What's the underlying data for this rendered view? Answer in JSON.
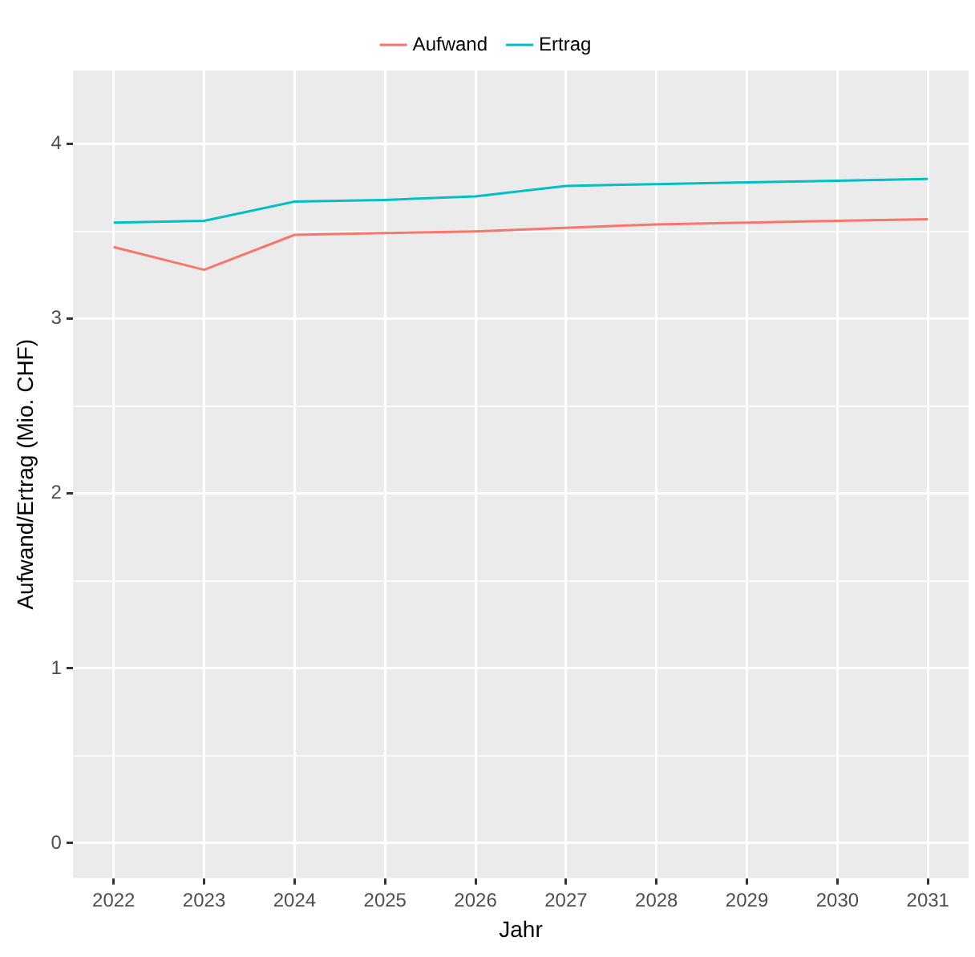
{
  "chart_data": {
    "type": "line",
    "xlabel": "Jahr",
    "ylabel": "Aufwand/Ertrag (Mio. CHF)",
    "categories": [
      "2022",
      "2023",
      "2024",
      "2025",
      "2026",
      "2027",
      "2028",
      "2029",
      "2030",
      "2031"
    ],
    "series": [
      {
        "name": "Aufwand",
        "color": "#f8766d",
        "values": [
          3.41,
          3.28,
          3.48,
          3.49,
          3.5,
          3.52,
          3.54,
          3.55,
          3.56,
          3.57
        ]
      },
      {
        "name": "Ertrag",
        "color": "#00bfc4",
        "values": [
          3.55,
          3.56,
          3.67,
          3.68,
          3.7,
          3.76,
          3.77,
          3.78,
          3.79,
          3.8
        ]
      }
    ],
    "ylim": [
      -0.2,
      4.42
    ],
    "yticks": [
      0,
      {
        "value": 0.5,
        "label": null
      },
      1,
      {
        "value": 1.5,
        "label": null
      },
      2,
      {
        "value": 2.5,
        "label": null
      },
      3,
      {
        "value": 3.5,
        "label": null
      },
      4
    ],
    "grid": true,
    "legend": "top",
    "marker": "none",
    "line_style": "solid"
  }
}
